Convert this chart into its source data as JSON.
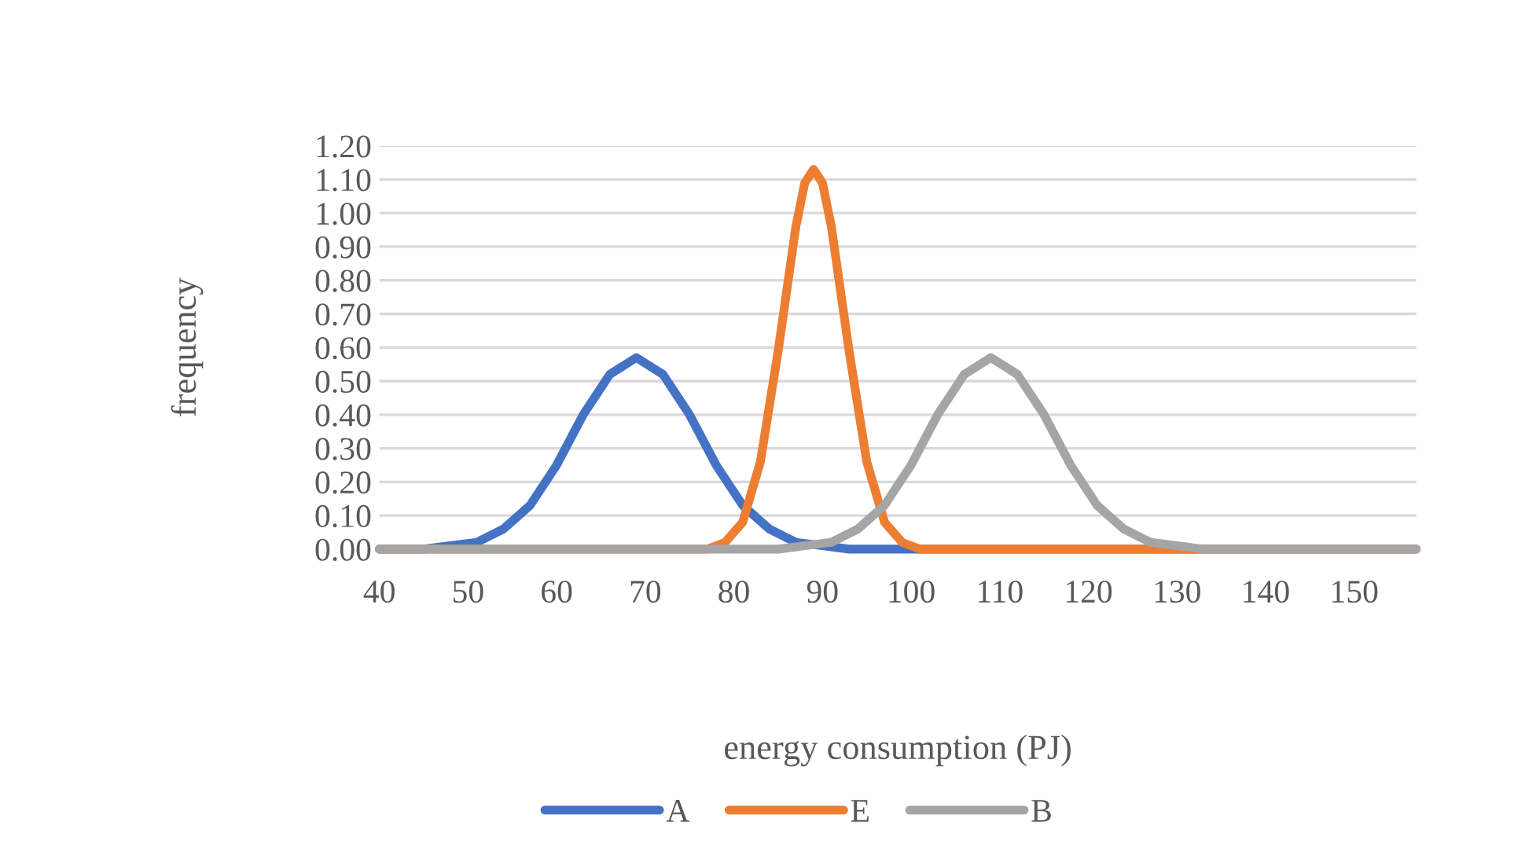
{
  "chart_data": {
    "type": "line",
    "xlabel": "energy consumption (PJ)",
    "ylabel": "frequency",
    "xlim": [
      40,
      157
    ],
    "xticks": [
      40,
      50,
      60,
      70,
      80,
      90,
      100,
      110,
      120,
      130,
      140,
      150
    ],
    "ylim": [
      0,
      1.2
    ],
    "yticks": [
      {
        "value": 0,
        "label": "0.00"
      },
      {
        "value": 0.1,
        "label": "0.10"
      },
      {
        "value": 0.2,
        "label": "0.20"
      },
      {
        "value": 0.3,
        "label": "0.30"
      },
      {
        "value": 0.4,
        "label": "0.40"
      },
      {
        "value": 0.5,
        "label": "0.50"
      },
      {
        "value": 0.6,
        "label": "0.60"
      },
      {
        "value": 0.7,
        "label": "0.70"
      },
      {
        "value": 0.8,
        "label": "0.80"
      },
      {
        "value": 0.9,
        "label": "0.90"
      },
      {
        "value": 1.0,
        "label": "1.00"
      },
      {
        "value": 1.1,
        "label": "1.10"
      },
      {
        "value": 1.2,
        "label": "1.20"
      }
    ],
    "grid": "y",
    "legend": "bottom",
    "marker": "none",
    "line_style": "solid",
    "series": [
      {
        "name": "A",
        "color": "#4472c4",
        "x": [
          40,
          45,
          48,
          51,
          54,
          57,
          60,
          63,
          66,
          69,
          72,
          75,
          78,
          81,
          84,
          87,
          90,
          93,
          100,
          157
        ],
        "values": [
          0,
          0,
          0.01,
          0.02,
          0.06,
          0.13,
          0.25,
          0.4,
          0.52,
          0.57,
          0.52,
          0.4,
          0.25,
          0.13,
          0.06,
          0.02,
          0.01,
          0,
          0,
          0
        ]
      },
      {
        "name": "E",
        "color": "#ed7d31",
        "x": [
          40,
          77,
          79,
          81,
          83,
          85,
          87,
          88,
          89,
          90,
          91,
          93,
          95,
          97,
          99,
          101,
          157
        ],
        "values": [
          0,
          0,
          0.02,
          0.08,
          0.26,
          0.59,
          0.96,
          1.09,
          1.13,
          1.09,
          0.96,
          0.59,
          0.26,
          0.08,
          0.02,
          0,
          0
        ]
      },
      {
        "name": "B",
        "color": "#a5a5a5",
        "x": [
          40,
          80,
          85,
          88,
          91,
          94,
          97,
          100,
          103,
          106,
          109,
          112,
          115,
          118,
          121,
          124,
          127,
          130,
          133,
          157
        ],
        "values": [
          0,
          0,
          0,
          0.01,
          0.02,
          0.06,
          0.13,
          0.25,
          0.4,
          0.52,
          0.57,
          0.52,
          0.4,
          0.25,
          0.13,
          0.06,
          0.02,
          0.01,
          0,
          0
        ]
      }
    ]
  }
}
